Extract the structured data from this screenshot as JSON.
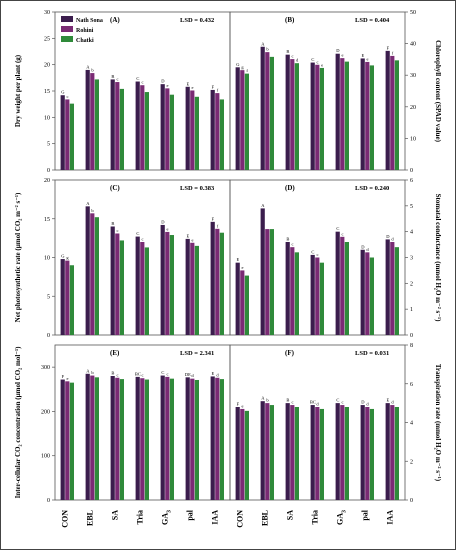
{
  "legend": [
    {
      "name": "Nath Sona",
      "color": "#3b1d4d"
    },
    {
      "name": "Rohini",
      "color": "#7a2b74"
    },
    {
      "name": "Chatki",
      "color": "#2f8a3a"
    }
  ],
  "categories": [
    "CON",
    "EBL",
    "SA",
    "Tria",
    "GA3",
    "pal",
    "IAA"
  ],
  "category_labels": [
    {
      "base": "CON",
      "sub": ""
    },
    {
      "base": "EBL",
      "sub": ""
    },
    {
      "base": "SA",
      "sub": ""
    },
    {
      "base": "Tria",
      "sub": ""
    },
    {
      "base": "GA",
      "sub": "3"
    },
    {
      "base": "pal",
      "sub": ""
    },
    {
      "base": "IAA",
      "sub": ""
    }
  ],
  "chart_data": [
    {
      "id": "A",
      "panel": "(A)",
      "lsd": "LSD = 0.432",
      "type": "bar",
      "ylabel": "Dry weight per plant (g)",
      "ylabel_side": "left",
      "ylim": [
        0,
        30
      ],
      "ticks": [
        0,
        5,
        10,
        15,
        20,
        25,
        30
      ],
      "series": [
        {
          "name": "Nath Sona",
          "values": [
            14.2,
            19.0,
            17.2,
            16.8,
            16.3,
            15.8,
            15.2
          ],
          "letters": [
            "G",
            "A",
            "B",
            "C",
            "D",
            "E",
            "F"
          ]
        },
        {
          "name": "Rohini",
          "values": [
            13.4,
            18.4,
            16.7,
            16.1,
            15.5,
            15.1,
            14.6
          ],
          "letters": [
            "c",
            "b",
            "c",
            "c",
            "e",
            "e",
            "f"
          ]
        },
        {
          "name": "Chatki",
          "values": [
            12.6,
            17.2,
            15.4,
            14.8,
            14.3,
            13.9,
            13.4
          ],
          "letters": [
            "",
            "",
            "",
            "",
            "",
            "",
            ""
          ]
        }
      ]
    },
    {
      "id": "B",
      "panel": "(B)",
      "lsd": "LSD = 0.404",
      "type": "bar",
      "ylabel": "Chlorophyll content (SPAD value)",
      "ylabel_side": "right",
      "ylim": [
        0,
        50
      ],
      "ticks": [
        0,
        10,
        20,
        30,
        40,
        50
      ],
      "series": [
        {
          "name": "Nath Sona",
          "values": [
            32.5,
            39.0,
            36.5,
            34.0,
            36.8,
            35.3,
            37.7
          ],
          "letters": [
            "G",
            "A",
            "B",
            "C",
            "D",
            "E",
            "F"
          ]
        },
        {
          "name": "Rohini",
          "values": [
            31.6,
            37.3,
            35.1,
            33.3,
            35.4,
            34.2,
            36.1
          ],
          "letters": [
            "g",
            "b",
            "c",
            "c",
            "e",
            "e",
            "f"
          ]
        },
        {
          "name": "Chatki",
          "values": [
            30.5,
            35.8,
            33.8,
            32.3,
            34.3,
            33.1,
            34.7
          ],
          "letters": [
            "f",
            "",
            "d",
            "e",
            "",
            "",
            ""
          ]
        }
      ]
    },
    {
      "id": "C",
      "panel": "(C)",
      "lsd": "LSD = 0.383",
      "type": "bar",
      "ylabel": "Net photosynthetic rate (µmol CO₂ m⁻² s⁻¹)",
      "ylabel_side": "left",
      "ylim": [
        0,
        20
      ],
      "ticks": [
        0,
        5,
        10,
        15,
        20
      ],
      "series": [
        {
          "name": "Nath Sona",
          "values": [
            9.8,
            16.6,
            14.0,
            12.7,
            14.2,
            12.4,
            14.6
          ],
          "letters": [
            "G",
            "A",
            "B",
            "C",
            "D",
            "E",
            "F"
          ]
        },
        {
          "name": "Rohini",
          "values": [
            9.6,
            15.7,
            13.1,
            12.0,
            13.3,
            11.9,
            13.7
          ],
          "letters": [
            "g",
            "b",
            "c",
            "c",
            "e",
            "e",
            "f"
          ]
        },
        {
          "name": "Chatki",
          "values": [
            9.0,
            15.2,
            12.2,
            11.3,
            12.9,
            11.5,
            13.2
          ],
          "letters": [
            "",
            "",
            "",
            "",
            "",
            "",
            ""
          ]
        }
      ]
    },
    {
      "id": "D",
      "panel": "(D)",
      "lsd": "LSD = 0.240",
      "type": "bar",
      "ylabel": "Stomatal conductance (mmol H₂O m⁻² s⁻¹)",
      "ylabel_side": "right",
      "ylim": [
        0,
        6
      ],
      "ticks": [
        0,
        1,
        2,
        3,
        4,
        5,
        6
      ],
      "series": [
        {
          "name": "Nath Sona",
          "values": [
            2.8,
            4.9,
            3.6,
            3.1,
            4.0,
            3.3,
            3.7
          ],
          "letters": [
            "E",
            "A",
            "B",
            "C",
            "C",
            "D",
            "D"
          ]
        },
        {
          "name": "Rohini",
          "values": [
            2.5,
            4.1,
            3.4,
            3.0,
            3.8,
            3.2,
            3.6
          ],
          "letters": [
            "e",
            "",
            "c",
            "c",
            "c",
            "d",
            "d"
          ]
        },
        {
          "name": "Chatki",
          "values": [
            2.3,
            4.1,
            3.2,
            2.8,
            3.6,
            3.0,
            3.4
          ],
          "letters": [
            "",
            "",
            "",
            "",
            "",
            "",
            ""
          ]
        }
      ]
    },
    {
      "id": "E",
      "panel": "(E)",
      "lsd": "LSD = 2.341",
      "type": "bar",
      "ylabel": "Inter-cellular CO₂ concentration (µmol CO₂ mol⁻¹)",
      "ylabel_side": "left",
      "ylim": [
        0,
        350
      ],
      "ticks": [
        0,
        100,
        200,
        300
      ],
      "series": [
        {
          "name": "Nath Sona",
          "values": [
            272,
            285,
            280,
            278,
            281,
            277,
            279
          ],
          "letters": [
            "F",
            "A",
            "B",
            "BC",
            "C",
            "DE",
            "E"
          ]
        },
        {
          "name": "Rohini",
          "values": [
            268,
            281,
            276,
            275,
            278,
            274,
            276
          ],
          "letters": [
            "e",
            "b",
            "c",
            "c",
            "c",
            "d",
            "d"
          ]
        },
        {
          "name": "Chatki",
          "values": [
            265,
            277,
            273,
            272,
            274,
            271,
            273
          ],
          "letters": [
            "",
            "",
            "",
            "",
            "",
            "",
            ""
          ]
        }
      ]
    },
    {
      "id": "F",
      "panel": "(F)",
      "lsd": "LSD = 0.031",
      "type": "bar",
      "ylabel": "Transpiration rate (mmol H₂O m⁻² s⁻¹)",
      "ylabel_side": "right",
      "ylim": [
        0,
        8
      ],
      "ticks": [
        0,
        2,
        4,
        6,
        8
      ],
      "series": [
        {
          "name": "Nath Sona",
          "values": [
            4.8,
            5.1,
            5.0,
            4.9,
            5.0,
            4.9,
            5.0
          ],
          "letters": [
            "F",
            "A",
            "B",
            "BC",
            "C",
            "D",
            "E"
          ]
        },
        {
          "name": "Rohini",
          "values": [
            4.7,
            5.0,
            4.9,
            4.8,
            4.9,
            4.8,
            4.9
          ],
          "letters": [
            "e",
            "b",
            "c",
            "d",
            "c",
            "d",
            "d"
          ]
        },
        {
          "name": "Chatki",
          "values": [
            4.6,
            4.9,
            4.8,
            4.7,
            4.8,
            4.7,
            4.8
          ],
          "letters": [
            "",
            "",
            "",
            "",
            "",
            "",
            ""
          ]
        }
      ]
    }
  ]
}
